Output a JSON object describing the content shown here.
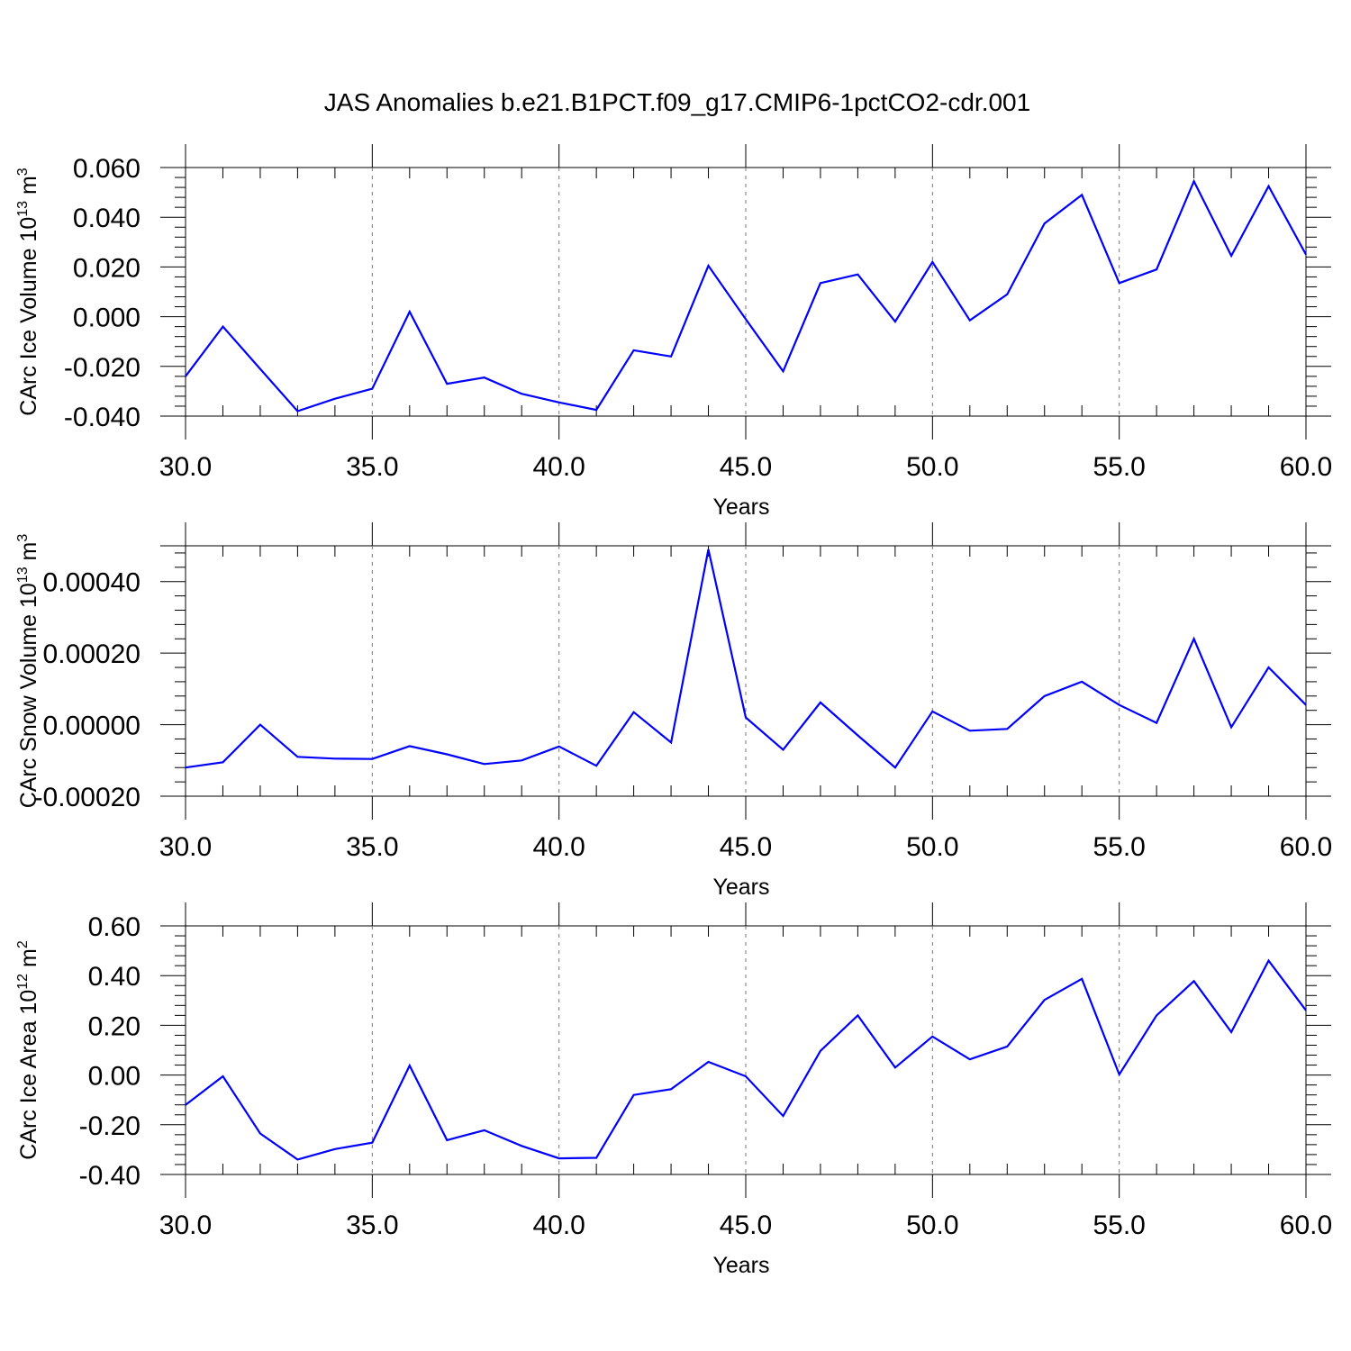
{
  "title": "JAS Anomalies b.e21.B1PCT.f09_g17.CMIP6-1pctCO2-cdr.001",
  "chart_data": [
    {
      "type": "line",
      "title": "JAS Anomalies b.e21.B1PCT.f09_g17.CMIP6-1pctCO2-cdr.001",
      "xlabel": "Years",
      "ylabel": "CArc Ice Volume 10",
      "ylabel_exp": "13",
      "ylabel_unit": " m",
      "ylabel_unit_exp": "3",
      "xlim": [
        30,
        60
      ],
      "ylim": [
        -0.04,
        0.06
      ],
      "xticks": [
        30,
        35,
        40,
        45,
        50,
        55,
        60
      ],
      "xtick_labels": [
        "30.0",
        "35.0",
        "40.0",
        "45.0",
        "50.0",
        "55.0",
        "60.0"
      ],
      "yticks": [
        -0.04,
        -0.02,
        0.0,
        0.02,
        0.04,
        0.06
      ],
      "ytick_labels": [
        "-0.040",
        "-0.020",
        "0.000",
        "0.020",
        "0.040",
        "0.060"
      ],
      "grid": "vertical dashed at major x ticks",
      "color": "#0000ff",
      "x": [
        30,
        31,
        32,
        33,
        34,
        35,
        36,
        37,
        38,
        39,
        40,
        41,
        42,
        43,
        44,
        45,
        46,
        47,
        48,
        49,
        50,
        51,
        52,
        53,
        54,
        55,
        56,
        57,
        58,
        59,
        60
      ],
      "values": [
        -0.024,
        -0.004,
        -0.021,
        -0.038,
        -0.033,
        -0.029,
        0.002,
        -0.027,
        -0.0245,
        -0.031,
        -0.0345,
        -0.0375,
        -0.0135,
        -0.016,
        0.0205,
        -0.001,
        -0.022,
        0.0135,
        0.017,
        -0.002,
        0.022,
        -0.0015,
        0.009,
        0.0375,
        0.049,
        0.0135,
        0.019,
        0.0545,
        0.0245,
        0.0525,
        0.025
      ]
    },
    {
      "type": "line",
      "xlabel": "Years",
      "ylabel": "CArc Snow Volume 10",
      "ylabel_exp": "13",
      "ylabel_unit": " m",
      "ylabel_unit_exp": "3",
      "xlim": [
        30,
        60
      ],
      "ylim": [
        -0.0002,
        0.0005
      ],
      "xticks": [
        30,
        35,
        40,
        45,
        50,
        55,
        60
      ],
      "xtick_labels": [
        "30.0",
        "35.0",
        "40.0",
        "45.0",
        "50.0",
        "55.0",
        "60.0"
      ],
      "yticks": [
        -0.0002,
        0.0,
        0.0002,
        0.0004
      ],
      "ytick_labels": [
        "-0.00020",
        "0.00000",
        "0.00020",
        "0.00040"
      ],
      "grid": "vertical dashed at major x ticks",
      "color": "#0000ff",
      "x": [
        30,
        31,
        32,
        33,
        34,
        35,
        36,
        37,
        38,
        39,
        40,
        41,
        42,
        43,
        44,
        45,
        46,
        47,
        48,
        49,
        50,
        51,
        52,
        53,
        54,
        55,
        56,
        57,
        58,
        59,
        60
      ],
      "values": [
        -0.00012,
        -0.000105,
        0.0,
        -9e-05,
        -9.5e-05,
        -9.6e-05,
        -6e-05,
        -8.3e-05,
        -0.00011,
        -0.0001,
        -6.1e-05,
        -0.000115,
        3.5e-05,
        -5e-05,
        0.00049,
        2e-05,
        -7e-05,
        6.2e-05,
        -3e-05,
        -0.00012,
        3.7e-05,
        -1.7e-05,
        -1.2e-05,
        8e-05,
        0.00012,
        5.5e-05,
        5e-06,
        0.00024,
        -7e-06,
        0.00016,
        5.5e-05
      ]
    },
    {
      "type": "line",
      "xlabel": "Years",
      "ylabel": "CArc Ice Area 10",
      "ylabel_exp": "12",
      "ylabel_unit": " m",
      "ylabel_unit_exp": "2",
      "xlim": [
        30,
        60
      ],
      "ylim": [
        -0.4,
        0.6
      ],
      "xticks": [
        30,
        35,
        40,
        45,
        50,
        55,
        60
      ],
      "xtick_labels": [
        "30.0",
        "35.0",
        "40.0",
        "45.0",
        "50.0",
        "55.0",
        "60.0"
      ],
      "yticks": [
        -0.4,
        -0.2,
        0.0,
        0.2,
        0.4,
        0.6
      ],
      "ytick_labels": [
        "-0.40",
        "-0.20",
        "0.00",
        "0.20",
        "0.40",
        "0.60"
      ],
      "grid": "vertical dashed at major x ticks",
      "color": "#0000ff",
      "x": [
        30,
        31,
        32,
        33,
        34,
        35,
        36,
        37,
        38,
        39,
        40,
        41,
        42,
        43,
        44,
        45,
        46,
        47,
        48,
        49,
        50,
        51,
        52,
        53,
        54,
        55,
        56,
        57,
        58,
        59,
        60
      ],
      "values": [
        -0.12,
        -0.005,
        -0.235,
        -0.34,
        -0.298,
        -0.272,
        0.038,
        -0.262,
        -0.222,
        -0.285,
        -0.335,
        -0.333,
        -0.08,
        -0.057,
        0.053,
        -0.005,
        -0.165,
        0.097,
        0.24,
        0.03,
        0.155,
        0.063,
        0.115,
        0.302,
        0.387,
        0.002,
        0.24,
        0.378,
        0.173,
        0.46,
        0.26
      ]
    }
  ]
}
